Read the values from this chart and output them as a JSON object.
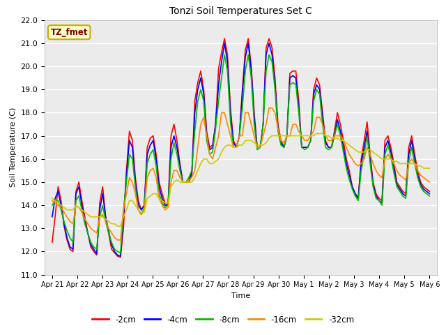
{
  "title": "Tonzi Soil Temperatures Set C",
  "xlabel": "Time",
  "ylabel": "Soil Temperature (C)",
  "ylim": [
    11.0,
    22.0
  ],
  "yticks": [
    11.0,
    12.0,
    13.0,
    14.0,
    15.0,
    16.0,
    17.0,
    18.0,
    19.0,
    20.0,
    21.0,
    22.0
  ],
  "fig_bg_color": "#ffffff",
  "plot_bg_color": "#ebebeb",
  "annotation_label": "TZ_fmet",
  "annotation_bg": "#ffffcc",
  "annotation_border": "#ccaa00",
  "annotation_text_color": "#880000",
  "series": {
    "neg2cm": {
      "label": "-2cm",
      "color": "#ff0000",
      "linewidth": 1.2
    },
    "neg4cm": {
      "label": "-4cm",
      "color": "#0000ff",
      "linewidth": 1.2
    },
    "neg8cm": {
      "label": "-8cm",
      "color": "#00bb00",
      "linewidth": 1.2
    },
    "neg16cm": {
      "label": "-16cm",
      "color": "#ff8800",
      "linewidth": 1.2
    },
    "neg32cm": {
      "label": "-32cm",
      "color": "#cccc00",
      "linewidth": 1.2
    }
  },
  "x_tick_labels": [
    "Apr 21",
    "Apr 22",
    "Apr 23",
    "Apr 24",
    "Apr 25",
    "Apr 26",
    "Apr 27",
    "Apr 28",
    "Apr 29",
    "Apr 30",
    "May 1",
    "May 2",
    "May 3",
    "May 4",
    "May 5",
    "May 6"
  ],
  "n_points_per_day": 8,
  "data_neg2cm": [
    12.4,
    13.5,
    14.8,
    14.2,
    13.1,
    12.5,
    12.1,
    12.0,
    14.6,
    15.0,
    14.2,
    13.5,
    12.8,
    12.2,
    12.0,
    11.85,
    14.1,
    14.8,
    13.5,
    12.8,
    12.1,
    11.95,
    11.8,
    11.75,
    13.0,
    15.5,
    17.2,
    16.8,
    15.2,
    14.2,
    13.8,
    14.0,
    16.5,
    16.9,
    17.0,
    16.2,
    15.0,
    14.5,
    14.1,
    14.0,
    17.0,
    17.5,
    16.8,
    15.8,
    15.0,
    15.0,
    15.0,
    15.3,
    18.5,
    19.3,
    19.8,
    19.0,
    17.2,
    16.5,
    16.6,
    17.5,
    19.9,
    20.6,
    21.2,
    20.5,
    18.2,
    16.8,
    16.5,
    17.0,
    19.0,
    20.7,
    21.2,
    20.0,
    18.0,
    16.5,
    16.5,
    17.5,
    20.8,
    21.2,
    20.8,
    19.5,
    17.5,
    16.8,
    16.5,
    17.0,
    19.7,
    19.8,
    19.8,
    18.5,
    16.5,
    16.5,
    16.5,
    16.8,
    19.0,
    19.5,
    19.2,
    18.0,
    16.8,
    16.5,
    16.5,
    17.2,
    18.0,
    17.5,
    16.8,
    16.0,
    15.5,
    14.8,
    14.5,
    14.3,
    16.0,
    16.8,
    17.6,
    16.2,
    15.0,
    14.5,
    14.3,
    14.2,
    16.8,
    17.0,
    16.5,
    15.8,
    15.0,
    14.8,
    14.6,
    14.5,
    16.5,
    17.0,
    16.2,
    15.5,
    15.0,
    14.8,
    14.7,
    14.6
  ],
  "data_neg4cm": [
    13.5,
    14.3,
    14.6,
    14.0,
    13.2,
    12.6,
    12.2,
    12.1,
    14.5,
    14.8,
    14.0,
    13.3,
    12.8,
    12.3,
    12.1,
    11.9,
    13.8,
    14.5,
    13.5,
    12.9,
    12.3,
    12.0,
    11.85,
    11.8,
    13.5,
    15.3,
    16.8,
    16.5,
    15.0,
    14.0,
    13.8,
    14.0,
    16.2,
    16.6,
    16.8,
    16.0,
    14.8,
    14.3,
    14.0,
    14.0,
    16.5,
    17.0,
    16.5,
    15.7,
    15.0,
    15.0,
    15.1,
    15.4,
    18.0,
    19.0,
    19.5,
    18.8,
    17.0,
    16.4,
    16.5,
    17.5,
    19.2,
    20.2,
    21.0,
    20.2,
    18.0,
    16.7,
    16.5,
    17.0,
    18.8,
    20.4,
    21.0,
    19.8,
    17.8,
    16.5,
    16.5,
    17.5,
    20.5,
    21.0,
    20.5,
    19.2,
    17.3,
    16.7,
    16.5,
    17.0,
    19.5,
    19.6,
    19.5,
    18.2,
    16.5,
    16.5,
    16.5,
    16.8,
    18.8,
    19.2,
    19.0,
    17.8,
    16.7,
    16.5,
    16.5,
    17.0,
    17.7,
    17.2,
    16.5,
    15.8,
    15.3,
    14.8,
    14.5,
    14.3,
    15.8,
    16.5,
    17.2,
    16.0,
    14.9,
    14.4,
    14.2,
    14.1,
    16.5,
    16.8,
    16.3,
    15.6,
    14.9,
    14.7,
    14.5,
    14.4,
    16.2,
    16.8,
    16.0,
    15.3,
    14.9,
    14.7,
    14.6,
    14.5
  ],
  "data_neg8cm": [
    14.0,
    14.2,
    14.2,
    13.8,
    13.3,
    12.9,
    12.6,
    12.4,
    14.2,
    14.4,
    13.8,
    13.2,
    12.8,
    12.4,
    12.2,
    12.1,
    13.5,
    14.0,
    13.3,
    12.8,
    12.4,
    12.1,
    12.0,
    11.95,
    13.8,
    15.0,
    16.2,
    16.0,
    14.8,
    13.8,
    13.6,
    13.9,
    15.8,
    16.2,
    16.4,
    15.7,
    14.5,
    14.1,
    13.9,
    14.0,
    16.0,
    16.7,
    16.2,
    15.5,
    15.0,
    15.0,
    15.2,
    15.5,
    17.2,
    18.5,
    19.0,
    18.5,
    16.8,
    16.2,
    16.3,
    17.3,
    18.5,
    19.5,
    20.5,
    19.8,
    17.6,
    16.5,
    16.5,
    17.0,
    18.2,
    19.8,
    20.5,
    19.5,
    17.5,
    16.4,
    16.5,
    17.5,
    19.8,
    20.5,
    20.2,
    19.0,
    17.2,
    16.6,
    16.5,
    17.0,
    19.2,
    19.3,
    19.2,
    18.0,
    16.5,
    16.4,
    16.5,
    16.8,
    18.5,
    19.0,
    18.8,
    17.5,
    16.5,
    16.4,
    16.5,
    17.0,
    17.5,
    17.0,
    16.3,
    15.6,
    15.1,
    14.7,
    14.4,
    14.2,
    15.5,
    16.2,
    17.0,
    15.8,
    14.8,
    14.3,
    14.2,
    14.0,
    16.2,
    16.6,
    16.1,
    15.4,
    14.8,
    14.6,
    14.4,
    14.3,
    15.9,
    16.5,
    15.8,
    15.2,
    14.8,
    14.6,
    14.5,
    14.4
  ],
  "data_neg16cm": [
    14.2,
    14.1,
    14.0,
    13.9,
    13.7,
    13.5,
    13.3,
    13.2,
    14.0,
    13.9,
    13.7,
    13.4,
    13.2,
    13.0,
    12.9,
    12.8,
    13.5,
    13.6,
    13.3,
    13.0,
    12.8,
    12.6,
    12.5,
    12.5,
    13.8,
    14.5,
    15.2,
    15.0,
    14.5,
    13.8,
    13.6,
    13.8,
    15.2,
    15.5,
    15.6,
    15.2,
    14.3,
    14.0,
    13.8,
    13.9,
    15.0,
    15.5,
    15.5,
    15.2,
    15.0,
    15.0,
    15.1,
    15.2,
    15.5,
    16.5,
    17.5,
    17.8,
    17.0,
    16.2,
    16.0,
    16.5,
    17.0,
    18.0,
    18.0,
    17.5,
    17.0,
    16.5,
    16.5,
    17.0,
    17.0,
    18.0,
    18.0,
    17.5,
    17.0,
    16.5,
    16.5,
    17.0,
    17.5,
    18.2,
    18.2,
    18.0,
    17.3,
    16.8,
    16.7,
    17.0,
    17.0,
    17.5,
    17.5,
    17.2,
    17.0,
    16.8,
    16.8,
    17.0,
    17.2,
    17.8,
    17.8,
    17.5,
    17.0,
    16.8,
    16.8,
    17.0,
    17.0,
    17.0,
    16.8,
    16.5,
    16.2,
    16.0,
    15.8,
    15.7,
    15.8,
    16.0,
    16.5,
    16.2,
    15.8,
    15.5,
    15.3,
    15.2,
    16.0,
    16.2,
    16.0,
    15.8,
    15.5,
    15.3,
    15.2,
    15.1,
    15.8,
    16.0,
    15.8,
    15.5,
    15.3,
    15.2,
    15.1,
    15.0
  ],
  "data_neg32cm": [
    14.3,
    14.2,
    14.1,
    14.0,
    13.9,
    13.8,
    13.8,
    13.8,
    14.0,
    13.9,
    13.8,
    13.7,
    13.6,
    13.5,
    13.5,
    13.5,
    13.5,
    13.5,
    13.4,
    13.3,
    13.2,
    13.2,
    13.1,
    13.1,
    13.5,
    13.8,
    14.2,
    14.2,
    14.0,
    13.8,
    13.7,
    13.7,
    14.3,
    14.4,
    14.5,
    14.5,
    14.3,
    14.2,
    14.1,
    14.1,
    14.8,
    15.0,
    15.1,
    15.0,
    15.0,
    15.0,
    15.0,
    15.0,
    15.2,
    15.5,
    15.8,
    16.0,
    16.0,
    15.8,
    15.8,
    15.9,
    16.0,
    16.3,
    16.5,
    16.6,
    16.6,
    16.5,
    16.5,
    16.6,
    16.6,
    16.8,
    16.8,
    16.8,
    16.7,
    16.6,
    16.6,
    16.6,
    16.7,
    16.9,
    17.0,
    17.0,
    17.0,
    17.0,
    17.0,
    17.0,
    17.0,
    17.0,
    17.0,
    17.0,
    17.0,
    17.0,
    17.0,
    17.0,
    17.0,
    17.1,
    17.1,
    17.1,
    17.0,
    17.0,
    16.9,
    16.9,
    16.9,
    16.8,
    16.8,
    16.7,
    16.6,
    16.5,
    16.4,
    16.3,
    16.3,
    16.3,
    16.4,
    16.4,
    16.3,
    16.2,
    16.1,
    16.0,
    16.0,
    16.0,
    16.0,
    15.9,
    15.9,
    15.8,
    15.8,
    15.8,
    15.8,
    15.8,
    15.8,
    15.7,
    15.7,
    15.6,
    15.6,
    15.6
  ]
}
